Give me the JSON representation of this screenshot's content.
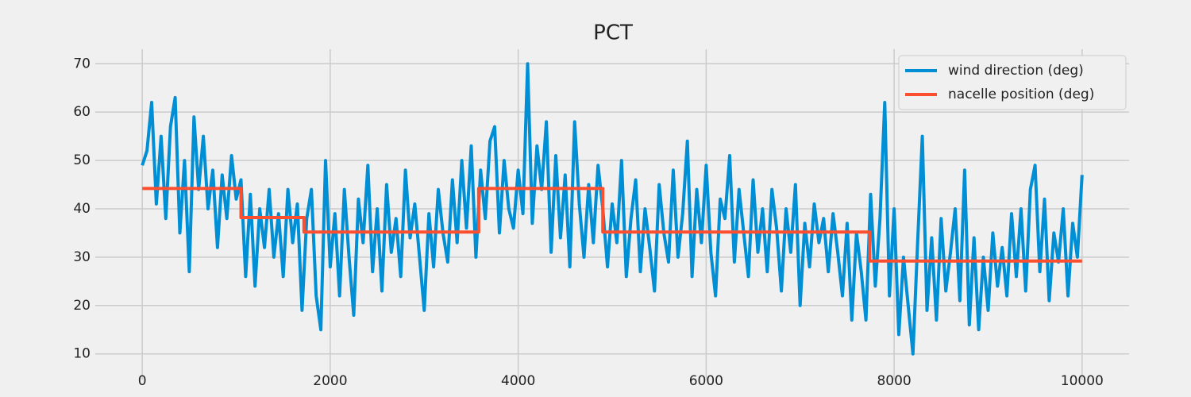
{
  "chart_data": {
    "type": "line",
    "title": "PCT",
    "xlim": [
      -500,
      10500
    ],
    "ylim": [
      4.7,
      73
    ],
    "xticks": [
      0,
      2000,
      4000,
      6000,
      8000,
      10000
    ],
    "yticks": [
      10,
      20,
      30,
      40,
      50,
      60,
      70
    ],
    "grid": true,
    "legend": "upper right",
    "series": [
      {
        "name": "wind direction (deg)",
        "color": "#008fd5",
        "x": [
          0,
          50,
          100,
          150,
          200,
          250,
          300,
          350,
          400,
          450,
          500,
          550,
          600,
          650,
          700,
          750,
          800,
          850,
          900,
          950,
          1000,
          1050,
          1100,
          1150,
          1200,
          1250,
          1300,
          1350,
          1400,
          1450,
          1500,
          1550,
          1600,
          1650,
          1700,
          1750,
          1800,
          1850,
          1900,
          1950,
          2000,
          2050,
          2100,
          2150,
          2200,
          2250,
          2300,
          2350,
          2400,
          2450,
          2500,
          2550,
          2600,
          2650,
          2700,
          2750,
          2800,
          2850,
          2900,
          2950,
          3000,
          3050,
          3100,
          3150,
          3200,
          3250,
          3300,
          3350,
          3400,
          3450,
          3500,
          3550,
          3600,
          3650,
          3700,
          3750,
          3800,
          3850,
          3900,
          3950,
          4000,
          4050,
          4100,
          4150,
          4200,
          4250,
          4300,
          4350,
          4400,
          4450,
          4500,
          4550,
          4600,
          4650,
          4700,
          4750,
          4800,
          4850,
          4900,
          4950,
          5000,
          5050,
          5100,
          5150,
          5200,
          5250,
          5300,
          5350,
          5400,
          5450,
          5500,
          5550,
          5600,
          5650,
          5700,
          5750,
          5800,
          5850,
          5900,
          5950,
          6000,
          6050,
          6100,
          6150,
          6200,
          6250,
          6300,
          6350,
          6400,
          6450,
          6500,
          6550,
          6600,
          6650,
          6700,
          6750,
          6800,
          6850,
          6900,
          6950,
          7000,
          7050,
          7100,
          7150,
          7200,
          7250,
          7300,
          7350,
          7400,
          7450,
          7500,
          7550,
          7600,
          7650,
          7700,
          7750,
          7800,
          7850,
          7900,
          7950,
          8000,
          8050,
          8100,
          8150,
          8200,
          8250,
          8300,
          8350,
          8400,
          8450,
          8500,
          8550,
          8600,
          8650,
          8700,
          8750,
          8800,
          8850,
          8900,
          8950,
          9000,
          9050,
          9100,
          9150,
          9200,
          9250,
          9300,
          9350,
          9400,
          9450,
          9500,
          9550,
          9600,
          9650,
          9700,
          9750,
          9800,
          9850,
          9900,
          9950,
          10000
        ],
        "values": [
          49,
          52,
          62,
          41,
          55,
          38,
          57,
          63,
          35,
          50,
          27,
          59,
          44,
          55,
          40,
          48,
          32,
          47,
          38,
          51,
          42,
          46,
          26,
          43,
          24,
          40,
          32,
          44,
          30,
          39,
          26,
          44,
          33,
          41,
          19,
          38,
          44,
          22,
          15,
          50,
          28,
          39,
          22,
          44,
          30,
          18,
          42,
          33,
          49,
          27,
          40,
          23,
          45,
          31,
          38,
          26,
          48,
          34,
          41,
          30,
          19,
          39,
          28,
          44,
          35,
          29,
          46,
          33,
          50,
          36,
          53,
          30,
          48,
          38,
          54,
          57,
          35,
          50,
          40,
          36,
          48,
          39,
          70,
          37,
          53,
          44,
          58,
          31,
          51,
          34,
          47,
          28,
          58,
          41,
          30,
          45,
          33,
          49,
          40,
          28,
          41,
          33,
          50,
          26,
          38,
          46,
          27,
          40,
          32,
          23,
          45,
          35,
          29,
          48,
          30,
          39,
          54,
          26,
          44,
          33,
          49,
          31,
          22,
          42,
          38,
          51,
          29,
          44,
          35,
          26,
          46,
          31,
          40,
          27,
          44,
          36,
          23,
          40,
          31,
          45,
          20,
          37,
          28,
          41,
          33,
          38,
          27,
          39,
          31,
          22,
          37,
          17,
          35,
          27,
          17,
          43,
          24,
          38,
          62,
          22,
          40,
          14,
          30,
          20,
          10,
          33,
          55,
          19,
          34,
          17,
          38,
          23,
          31,
          40,
          21,
          48,
          16,
          34,
          15,
          30,
          19,
          35,
          24,
          32,
          22,
          39,
          26,
          40,
          23,
          44,
          49,
          27,
          42,
          21,
          35,
          29,
          40,
          22,
          37,
          30,
          47
        ]
      },
      {
        "name": "nacelle position (deg)",
        "color": "#fc4f30",
        "x": [
          0,
          1050,
          1050,
          1720,
          1720,
          3580,
          3580,
          4900,
          4900,
          7740,
          7740,
          10000
        ],
        "values": [
          44.2,
          44.2,
          38.2,
          38.2,
          35.2,
          35.2,
          44.2,
          44.2,
          35.2,
          35.2,
          29.2,
          29.2
        ]
      }
    ]
  }
}
